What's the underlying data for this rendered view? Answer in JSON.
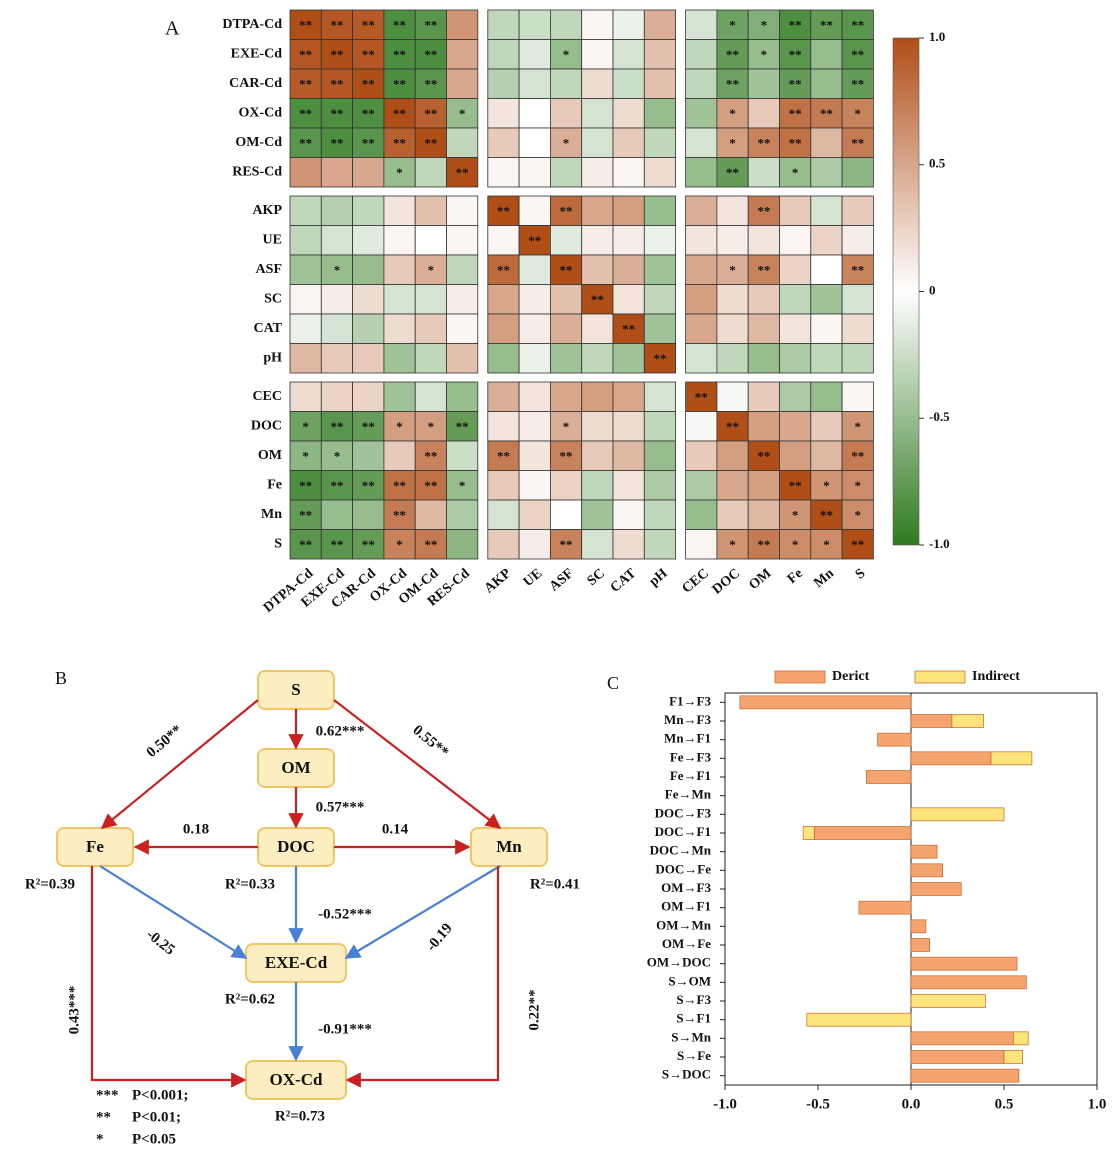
{
  "chart_data": [
    {
      "type": "heatmap",
      "panel": "A",
      "rows": [
        "DTPA-Cd",
        "EXE-Cd",
        "CAR-Cd",
        "OX-Cd",
        "OM-Cd",
        "RES-Cd",
        "AKP",
        "UE",
        "ASF",
        "SC",
        "CAT",
        "pH",
        "CEC",
        "DOC",
        "OM",
        "Fe",
        "Mn",
        "S"
      ],
      "columns": [
        "DTPA-Cd",
        "EXE-Cd",
        "CAR-Cd",
        "OX-Cd",
        "OM-Cd",
        "RES-Cd",
        "AKP",
        "UE",
        "ASF",
        "SC",
        "CAT",
        "pH",
        "CEC",
        "DOC",
        "OM",
        "Fe",
        "Mn",
        "S"
      ],
      "values": [
        [
          1,
          0.95,
          0.93,
          -0.85,
          -0.8,
          0.6,
          -0.3,
          -0.25,
          -0.3,
          0.05,
          -0.1,
          0.45,
          -0.2,
          -0.7,
          -0.6,
          -0.85,
          -0.75,
          -0.8
        ],
        [
          0.95,
          1,
          0.95,
          -0.85,
          -0.85,
          0.5,
          -0.3,
          -0.15,
          -0.5,
          0.05,
          -0.2,
          0.35,
          -0.3,
          -0.75,
          -0.5,
          -0.8,
          -0.5,
          -0.8
        ],
        [
          0.93,
          0.95,
          1,
          -0.85,
          -0.8,
          0.5,
          -0.35,
          -0.2,
          -0.3,
          0.2,
          -0.25,
          0.35,
          -0.3,
          -0.7,
          -0.45,
          -0.75,
          -0.5,
          -0.75
        ],
        [
          -0.85,
          -0.85,
          -0.85,
          1,
          0.9,
          -0.5,
          0.15,
          0,
          0.3,
          -0.2,
          0.2,
          -0.5,
          -0.45,
          0.55,
          0.3,
          0.8,
          0.75,
          0.7
        ],
        [
          -0.8,
          -0.85,
          -0.8,
          0.9,
          1,
          -0.3,
          0.3,
          0,
          0.45,
          -0.2,
          0.3,
          -0.3,
          -0.2,
          0.55,
          0.7,
          0.8,
          0.4,
          0.75
        ],
        [
          0.6,
          0.5,
          0.5,
          -0.5,
          -0.3,
          1,
          0.05,
          0.05,
          -0.3,
          0.1,
          0.05,
          0.2,
          -0.5,
          -0.75,
          -0.25,
          -0.5,
          -0.4,
          -0.55
        ],
        [
          -0.3,
          -0.35,
          -0.3,
          0.15,
          0.35,
          0.05,
          1,
          0.05,
          0.85,
          0.5,
          0.55,
          -0.5,
          0.45,
          0.15,
          0.75,
          0.3,
          -0.2,
          0.3
        ],
        [
          -0.3,
          -0.2,
          -0.15,
          0.05,
          0,
          0.05,
          0.05,
          1,
          -0.15,
          0.1,
          0.1,
          -0.1,
          0.15,
          0.1,
          0.15,
          0.05,
          0.25,
          0.1
        ],
        [
          -0.45,
          -0.5,
          -0.5,
          0.3,
          0.45,
          -0.3,
          0.85,
          -0.15,
          1,
          0.35,
          0.45,
          -0.45,
          0.5,
          0.45,
          0.7,
          0.25,
          0,
          0.7
        ],
        [
          0.05,
          0.1,
          0.2,
          -0.2,
          -0.2,
          0.1,
          0.5,
          0.1,
          0.35,
          1,
          0.15,
          -0.3,
          0.55,
          0.2,
          0.3,
          -0.3,
          -0.45,
          -0.2
        ],
        [
          -0.1,
          -0.2,
          -0.35,
          0.2,
          0.3,
          0.05,
          0.55,
          0.1,
          0.45,
          0.15,
          1,
          -0.45,
          0.5,
          0.2,
          0.4,
          0.15,
          0.05,
          0.2
        ],
        [
          0.4,
          0.3,
          0.3,
          -0.45,
          -0.3,
          0.35,
          -0.5,
          -0.1,
          -0.45,
          -0.3,
          -0.45,
          1,
          -0.2,
          -0.3,
          -0.5,
          -0.4,
          -0.3,
          -0.3
        ],
        [
          0.2,
          0.25,
          0.25,
          -0.45,
          -0.2,
          -0.5,
          0.45,
          0.15,
          0.5,
          0.55,
          0.5,
          -0.2,
          1,
          -0.05,
          0.3,
          -0.4,
          -0.5,
          0.05
        ],
        [
          -0.7,
          -0.8,
          -0.75,
          0.55,
          0.55,
          -0.75,
          0.15,
          0.1,
          0.45,
          0.2,
          0.2,
          -0.3,
          -0.05,
          1,
          0.55,
          0.5,
          0.3,
          0.6
        ],
        [
          -0.55,
          -0.5,
          -0.45,
          0.3,
          0.7,
          -0.25,
          0.75,
          0.15,
          0.7,
          0.3,
          0.4,
          -0.5,
          0.3,
          0.55,
          1,
          0.55,
          0.4,
          0.75
        ],
        [
          -0.85,
          -0.8,
          -0.75,
          0.8,
          0.8,
          -0.5,
          0.3,
          0.05,
          0.25,
          -0.3,
          0.15,
          -0.4,
          -0.4,
          0.5,
          0.55,
          1,
          0.6,
          0.65
        ],
        [
          -0.75,
          -0.5,
          -0.5,
          0.75,
          0.4,
          -0.4,
          -0.2,
          0.25,
          0,
          -0.45,
          0.05,
          -0.3,
          -0.5,
          0.3,
          0.4,
          0.6,
          1,
          0.65
        ],
        [
          -0.8,
          -0.8,
          -0.75,
          0.7,
          0.75,
          -0.55,
          0.3,
          0.1,
          0.7,
          -0.2,
          0.2,
          -0.3,
          0.05,
          0.6,
          0.75,
          0.65,
          0.65,
          1
        ]
      ],
      "significance": [
        [
          "**",
          "**",
          "**",
          "**",
          "**",
          null,
          null,
          null,
          null,
          null,
          null,
          null,
          null,
          "*",
          "*",
          "**",
          "**",
          "**"
        ],
        [
          "**",
          "**",
          "**",
          "**",
          "**",
          null,
          null,
          null,
          "*",
          null,
          null,
          null,
          null,
          "**",
          "*",
          "**",
          null,
          "**"
        ],
        [
          "**",
          "**",
          "**",
          "**",
          "**",
          null,
          null,
          null,
          null,
          null,
          null,
          null,
          null,
          "**",
          null,
          "**",
          null,
          "**"
        ],
        [
          "**",
          "**",
          "**",
          "**",
          "**",
          "*",
          null,
          null,
          null,
          null,
          null,
          null,
          null,
          "*",
          null,
          "**",
          "**",
          "*"
        ],
        [
          "**",
          "**",
          "**",
          "**",
          "**",
          null,
          null,
          null,
          "*",
          null,
          null,
          null,
          null,
          "*",
          "**",
          "**",
          null,
          "**"
        ],
        [
          null,
          null,
          null,
          "*",
          null,
          "**",
          null,
          null,
          null,
          null,
          null,
          null,
          null,
          "**",
          null,
          "*",
          null,
          null
        ],
        [
          null,
          null,
          null,
          null,
          null,
          null,
          "**",
          null,
          "**",
          null,
          null,
          null,
          null,
          null,
          "**",
          null,
          null,
          null
        ],
        [
          null,
          null,
          null,
          null,
          null,
          null,
          null,
          "**",
          null,
          null,
          null,
          null,
          null,
          null,
          null,
          null,
          null,
          null
        ],
        [
          null,
          "*",
          null,
          null,
          "*",
          null,
          "**",
          null,
          "**",
          null,
          null,
          null,
          null,
          "*",
          "**",
          null,
          null,
          "**"
        ],
        [
          null,
          null,
          null,
          null,
          null,
          null,
          null,
          null,
          null,
          "**",
          null,
          null,
          null,
          null,
          null,
          null,
          null,
          null
        ],
        [
          null,
          null,
          null,
          null,
          null,
          null,
          null,
          null,
          null,
          null,
          "**",
          null,
          null,
          null,
          null,
          null,
          null,
          null
        ],
        [
          null,
          null,
          null,
          null,
          null,
          null,
          null,
          null,
          null,
          null,
          null,
          "**",
          null,
          null,
          null,
          null,
          null,
          null
        ],
        [
          null,
          null,
          null,
          null,
          null,
          null,
          null,
          null,
          null,
          null,
          null,
          null,
          "**",
          null,
          null,
          null,
          null,
          null
        ],
        [
          "*",
          "**",
          "**",
          "*",
          "*",
          "**",
          null,
          null,
          "*",
          null,
          null,
          null,
          null,
          "**",
          null,
          null,
          null,
          "*"
        ],
        [
          "*",
          "*",
          null,
          null,
          "**",
          null,
          "**",
          null,
          "**",
          null,
          null,
          null,
          null,
          null,
          "**",
          null,
          null,
          "**"
        ],
        [
          "**",
          "**",
          "**",
          "**",
          "**",
          "*",
          null,
          null,
          null,
          null,
          null,
          null,
          null,
          null,
          null,
          "**",
          "*",
          "*"
        ],
        [
          "**",
          null,
          null,
          "**",
          null,
          null,
          null,
          null,
          null,
          null,
          null,
          null,
          null,
          null,
          null,
          "*",
          "**",
          "*"
        ],
        [
          "**",
          "**",
          "**",
          "*",
          "**",
          null,
          null,
          null,
          "**",
          null,
          null,
          null,
          null,
          "*",
          "**",
          "*",
          "*",
          "**"
        ]
      ],
      "colors": [
        "#2f7a1f",
        "#ffffff",
        "#b04e18"
      ],
      "zlim": [
        -1,
        1
      ],
      "zticks": [
        {
          "value": 1,
          "label": "1.0"
        },
        0.5,
        0,
        -0.5,
        {
          "value": -1,
          "label": "-1.0"
        }
      ]
    },
    {
      "type": "bar",
      "orientation": "horizontal",
      "stacked": true,
      "panel": "C",
      "categories": [
        "F1→F3",
        "Mn→F3",
        "Mn→F1",
        "Fe→F3",
        "Fe→F1",
        "Fe→Mn",
        "DOC→F3",
        "DOC→F1",
        "DOC→Mn",
        "DOC→Fe",
        "OM→F3",
        "OM→F1",
        "OM→Mn",
        "OM→Fe",
        "OM→DOC",
        "S→OM",
        "S→F3",
        "S→F1",
        "S→Mn",
        "S→Fe",
        "S→DOC"
      ],
      "series": [
        {
          "name": "Derict",
          "color": "#f4a46e",
          "values": [
            -0.92,
            0.22,
            -0.18,
            0.43,
            -0.24,
            null,
            null,
            -0.52,
            0.14,
            0.17,
            0.27,
            -0.28,
            0.08,
            0.1,
            0.57,
            0.62,
            null,
            null,
            0.55,
            0.5,
            0.58
          ]
        },
        {
          "name": "Indirect",
          "color": "#fde47a",
          "values": [
            null,
            0.17,
            null,
            0.22,
            null,
            null,
            0.5,
            -0.06,
            null,
            null,
            null,
            null,
            null,
            null,
            null,
            null,
            0.4,
            -0.56,
            0.08,
            0.1,
            null
          ]
        }
      ],
      "xlim": [
        -1,
        1
      ],
      "xticks": [
        {
          "value": -1,
          "label": "-1.0"
        },
        -0.5,
        {
          "value": 0,
          "label": "0.0"
        },
        0.5,
        {
          "value": 1,
          "label": "1.0"
        }
      ],
      "legend": "top"
    }
  ],
  "path_diagram": {
    "panel": "B",
    "nodes": [
      {
        "label": "S"
      },
      {
        "label": "OM"
      },
      {
        "label": "DOC"
      },
      {
        "label": "Fe"
      },
      {
        "label": "Mn"
      },
      {
        "label": "EXE-Cd"
      },
      {
        "label": "OX-Cd"
      }
    ],
    "edges": [
      {
        "label": "0.50**"
      },
      {
        "label": "0.62***"
      },
      {
        "label": "0.55**"
      },
      {
        "label": "0.57***"
      },
      {
        "label": "0.18"
      },
      {
        "label": "0.14"
      },
      {
        "label": "-0.52***"
      },
      {
        "label": "-0.25"
      },
      {
        "label": "-0.19"
      },
      {
        "label": "-0.91***"
      },
      {
        "label": "0.43***"
      },
      {
        "label": "0.22**"
      }
    ],
    "r_squared": [
      "R²=0.39",
      "R²=0.33",
      "R²=0.41",
      "R²=0.62",
      "R²=0.73"
    ],
    "legend": [
      [
        "***",
        "P<0.001;"
      ],
      [
        "**",
        "P<0.01;"
      ],
      [
        "*",
        "P<0.05"
      ]
    ]
  }
}
